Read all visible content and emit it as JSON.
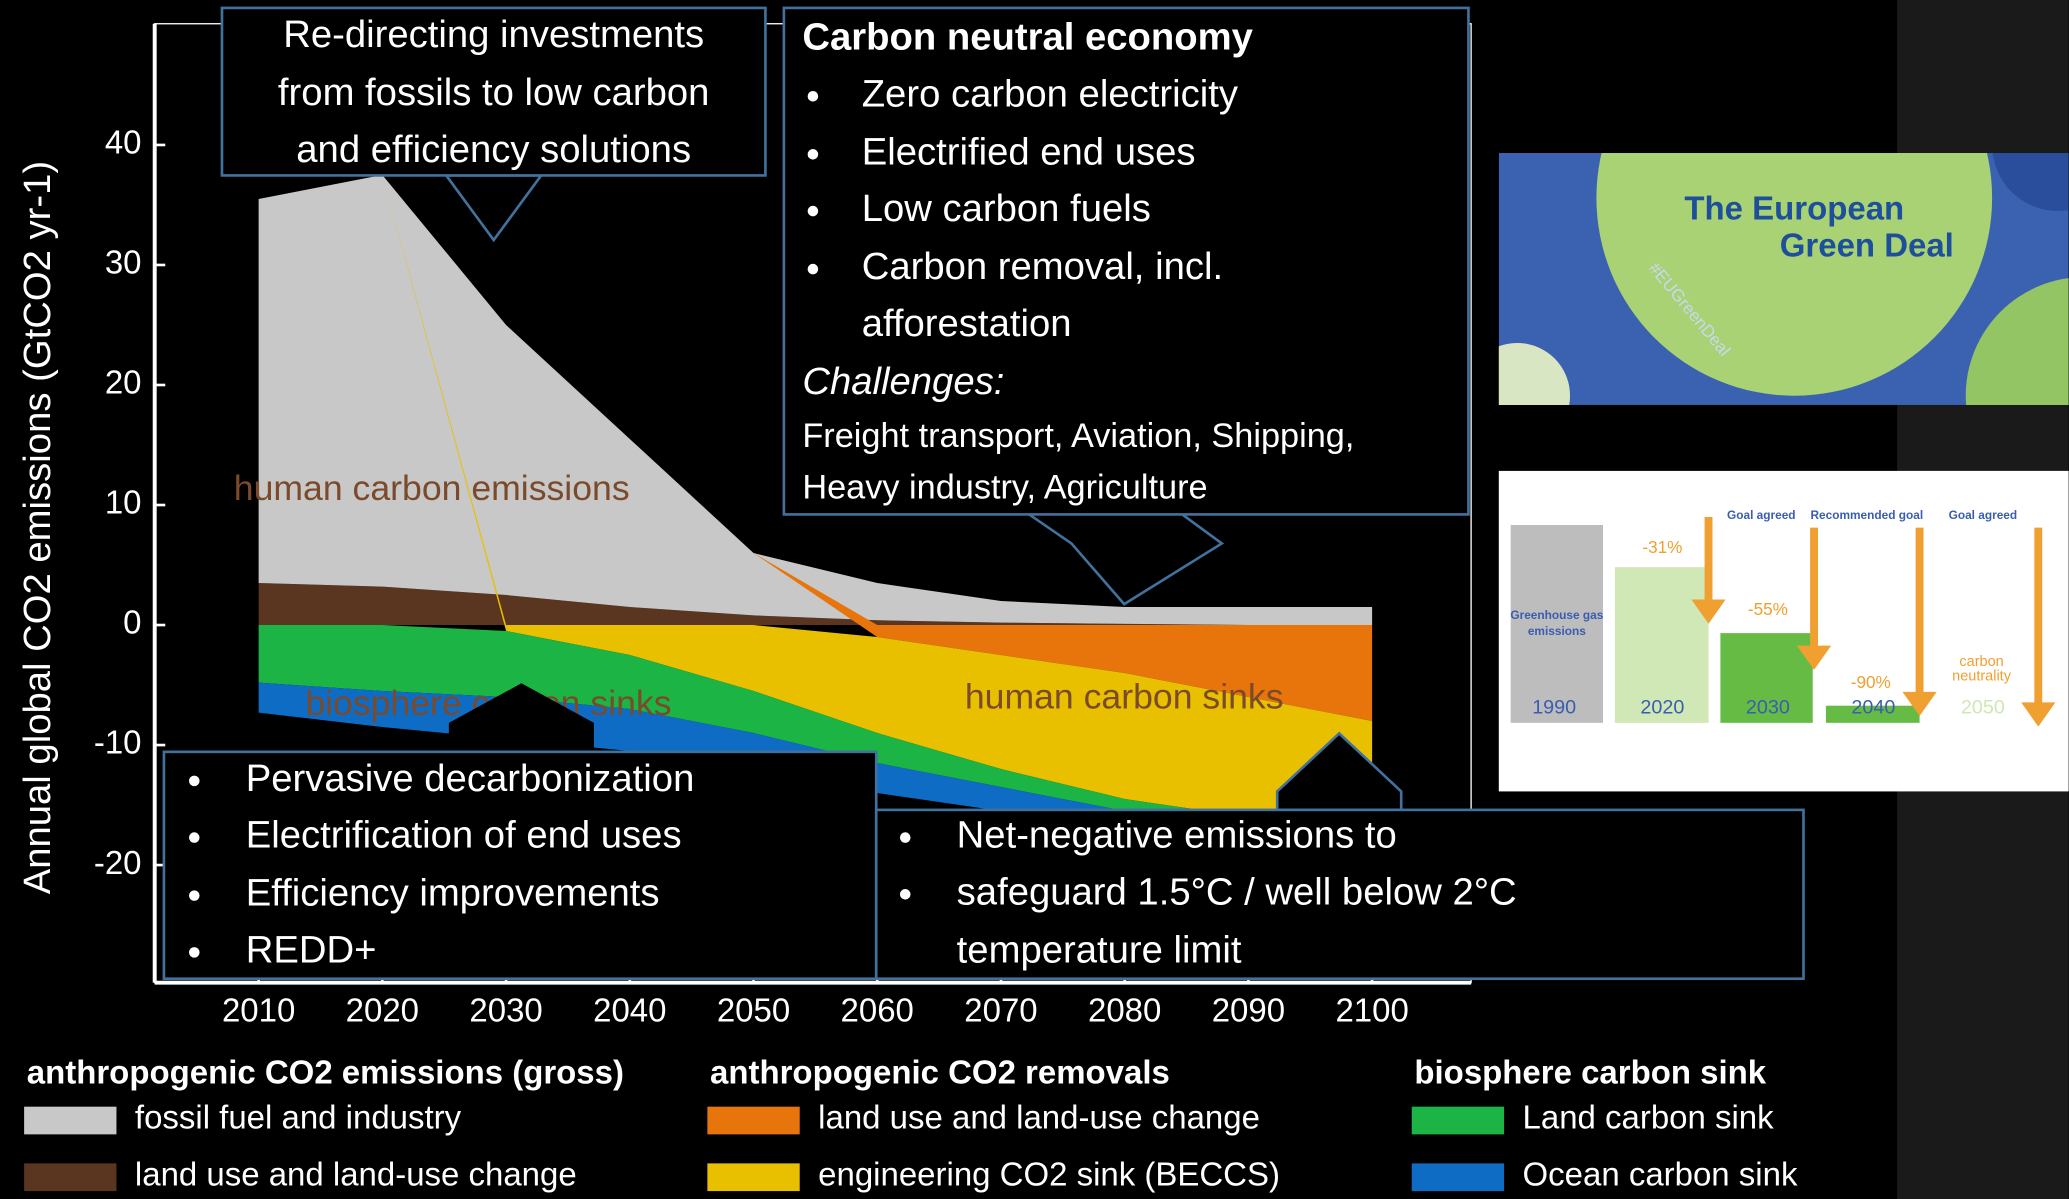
{
  "chart_data": {
    "type": "area",
    "ylabel": "Annual global CO2 emissions (GtCO2 yr-1)",
    "x": [
      2010,
      2020,
      2030,
      2040,
      2050,
      2060,
      2070,
      2080,
      2090,
      2100
    ],
    "xlim": [
      2001.6,
      2108
    ],
    "ylim": [
      -29.8,
      50.1
    ],
    "xticks": [
      2010,
      2020,
      2030,
      2040,
      2050,
      2060,
      2070,
      2080,
      2090,
      2100
    ],
    "yticks": [
      -20,
      -10,
      0,
      10,
      20,
      30,
      40
    ],
    "series": [
      {
        "name": "fossil fuel and industry",
        "color": "#c8c8c8",
        "values": [
          32,
          34.3,
          22.5,
          14,
          5.2,
          3.1,
          1.8,
          1.4,
          1.5,
          1.5
        ]
      },
      {
        "name": "land use and land-use change",
        "color": "#5a3520",
        "values": [
          3.5,
          3.2,
          2.5,
          1.5,
          0.8,
          0.4,
          0.2,
          0.1,
          0,
          0
        ]
      },
      {
        "name": "land use and land-use change",
        "color": "#e8740c",
        "values": [
          0,
          0,
          0,
          0,
          0,
          -1,
          -2.5,
          -4,
          -6,
          -8
        ]
      },
      {
        "name": "engineering CO2 sink (BECCS)",
        "color": "#e8c000",
        "values": [
          0,
          0,
          -0.5,
          -2.5,
          -5.5,
          -8,
          -9.5,
          -10.5,
          -10,
          -8
        ]
      },
      {
        "name": "Land carbon sink",
        "color": "#1db446",
        "values": [
          -4.8,
          -5.5,
          -5.5,
          -4.5,
          -3.5,
          -2.5,
          -1.5,
          -1,
          -0.8,
          -0.5
        ]
      },
      {
        "name": "Ocean carbon sink",
        "color": "#0f6cc4",
        "values": [
          -2.5,
          -3,
          -3.5,
          -3.5,
          -3,
          -2.5,
          -2,
          -1.5,
          -1,
          -1
        ]
      }
    ],
    "legend_titles": [
      "anthropogenic CO2 emissions (gross)",
      "anthropogenic CO2 removals",
      "biosphere carbon sink"
    ],
    "area_labels": [
      "human carbon emissions",
      "biosphere carbon sinks",
      "human carbon sinks"
    ]
  },
  "box_investments": {
    "lines": [
      "Re-directing investments",
      "from fossils to low carbon",
      "and efficiency solutions"
    ]
  },
  "box_neutral": {
    "title": "Carbon neutral economy",
    "bullets": [
      "Zero carbon electricity",
      "Electrified end uses",
      "Low carbon fuels",
      [
        "Carbon removal, incl.",
        "afforestation"
      ]
    ],
    "challenges_title": "Challenges:",
    "challenges": [
      "Freight transport, Aviation, Shipping,",
      "Heavy industry, Agriculture"
    ]
  },
  "box_decarbonization": {
    "bullets": [
      "Pervasive decarbonization",
      "Electrification of end uses",
      "Efficiency improvements",
      "REDD+"
    ]
  },
  "box_negative": {
    "bullets": [
      "Net-negative emissions to",
      [
        "safeguard 1.5°C / well below 2°C",
        "temperature limit"
      ]
    ]
  },
  "inset_green_deal": {
    "title": [
      "The European",
      "Green Deal"
    ],
    "hashtag": "#EUGreenDeal"
  },
  "inset_targets": {
    "base_label": [
      "Greenhouse gas",
      "emissions"
    ],
    "years": [
      "1990",
      "2020",
      "2030",
      "2040",
      "2050"
    ],
    "reductions": [
      "-31%",
      "-55%",
      "-90%"
    ],
    "goals": [
      "Goal agreed",
      "Recommended goal",
      "Goal agreed"
    ],
    "neutrality": [
      "carbon",
      "neutrality"
    ]
  }
}
